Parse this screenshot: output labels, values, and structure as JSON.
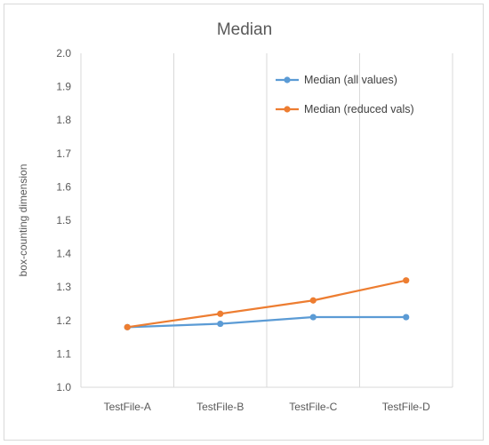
{
  "chart_data": {
    "type": "line",
    "title": "Median",
    "xlabel": "",
    "ylabel": "box-counting dimension",
    "categories": [
      "TestFile-A",
      "TestFile-B",
      "TestFile-C",
      "TestFile-D"
    ],
    "ylim": [
      1.0,
      2.0
    ],
    "yticks": [
      "1.0",
      "1.1",
      "1.2",
      "1.3",
      "1.4",
      "1.5",
      "1.6",
      "1.7",
      "1.8",
      "1.9",
      "2.0"
    ],
    "grid": "vertical",
    "legend_position": "top-right",
    "series": [
      {
        "name": "Median (all values)",
        "color": "#5b9bd5",
        "values": [
          1.18,
          1.19,
          1.21,
          1.21
        ]
      },
      {
        "name": "Median (reduced vals)",
        "color": "#ed7d31",
        "values": [
          1.18,
          1.22,
          1.26,
          1.32
        ]
      }
    ]
  }
}
